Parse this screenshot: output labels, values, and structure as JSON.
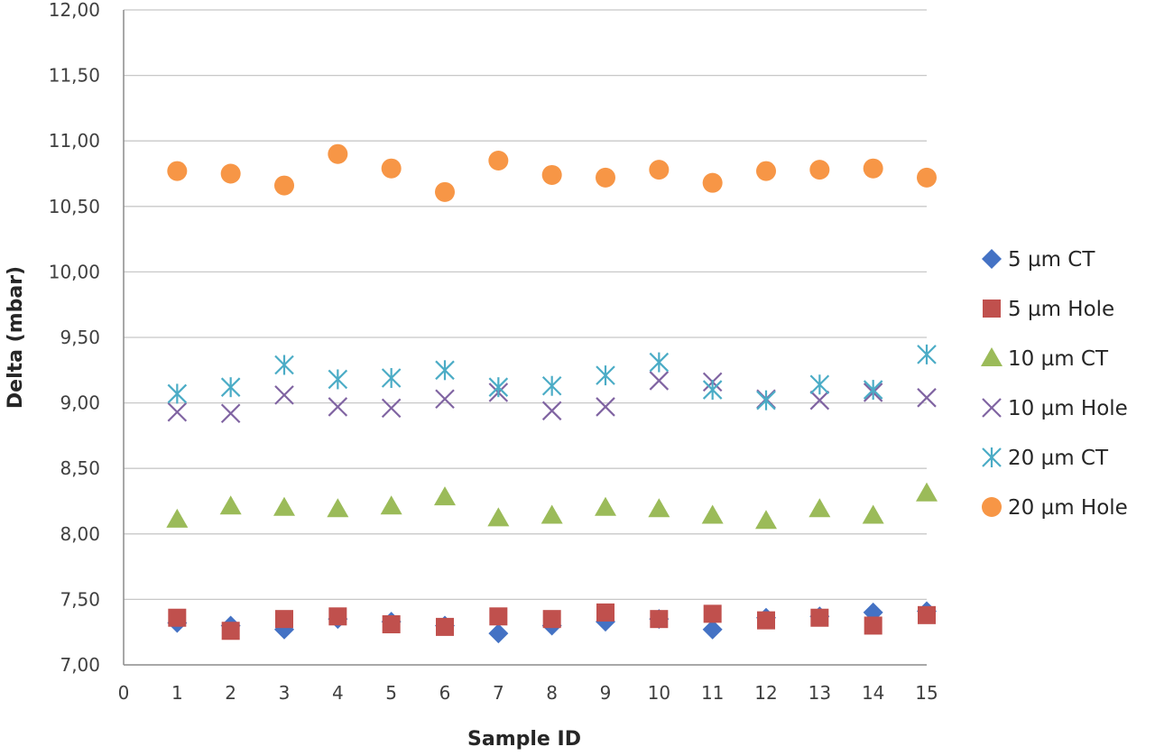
{
  "chart_data": {
    "type": "scatter",
    "title": "",
    "xlabel": "Sample ID",
    "ylabel": "Delta (mbar)",
    "xlim": [
      0,
      15
    ],
    "ylim": [
      7.0,
      12.0
    ],
    "x_ticks": [
      "0",
      "1",
      "2",
      "3",
      "4",
      "5",
      "6",
      "7",
      "8",
      "9",
      "10",
      "11",
      "12",
      "13",
      "14",
      "15"
    ],
    "y_ticks": [
      "7,00",
      "7,50",
      "8,00",
      "8,50",
      "9,00",
      "9,50",
      "10,00",
      "10,50",
      "11,00",
      "11,50",
      "12,00"
    ],
    "grid": "horizontal",
    "legend_position": "right",
    "x": [
      1,
      2,
      3,
      4,
      5,
      6,
      7,
      8,
      9,
      10,
      11,
      12,
      13,
      14,
      15
    ],
    "series": [
      {
        "name": "5 µm CT",
        "marker": "diamond",
        "color": "#4472c4",
        "values": [
          7.32,
          7.3,
          7.27,
          7.35,
          7.33,
          7.3,
          7.24,
          7.3,
          7.33,
          7.35,
          7.27,
          7.36,
          7.37,
          7.4,
          7.41
        ]
      },
      {
        "name": "5 µm Hole",
        "marker": "square",
        "color": "#c0504d",
        "values": [
          7.36,
          7.26,
          7.35,
          7.37,
          7.31,
          7.29,
          7.37,
          7.35,
          7.4,
          7.35,
          7.39,
          7.34,
          7.36,
          7.3,
          7.38
        ]
      },
      {
        "name": "10 µm CT",
        "marker": "triangle",
        "color": "#9bbb59",
        "values": [
          8.11,
          8.21,
          8.2,
          8.19,
          8.21,
          8.28,
          8.12,
          8.14,
          8.2,
          8.19,
          8.14,
          8.1,
          8.19,
          8.14,
          8.31
        ]
      },
      {
        "name": "10 µm Hole",
        "marker": "x",
        "color": "#8064a2",
        "values": [
          8.93,
          8.92,
          9.06,
          8.97,
          8.96,
          9.03,
          9.08,
          8.94,
          8.97,
          9.17,
          9.16,
          9.03,
          9.02,
          9.08,
          9.04
        ]
      },
      {
        "name": "20 µm CT",
        "marker": "asterisk",
        "color": "#4bacc6",
        "values": [
          9.07,
          9.12,
          9.29,
          9.18,
          9.19,
          9.25,
          9.12,
          9.13,
          9.21,
          9.31,
          9.1,
          9.02,
          9.14,
          9.1,
          9.37
        ]
      },
      {
        "name": "20 µm Hole",
        "marker": "circle",
        "color": "#f79646",
        "values": [
          10.77,
          10.75,
          10.66,
          10.9,
          10.79,
          10.61,
          10.85,
          10.74,
          10.72,
          10.78,
          10.68,
          10.77,
          10.78,
          10.79,
          10.72
        ]
      }
    ]
  }
}
